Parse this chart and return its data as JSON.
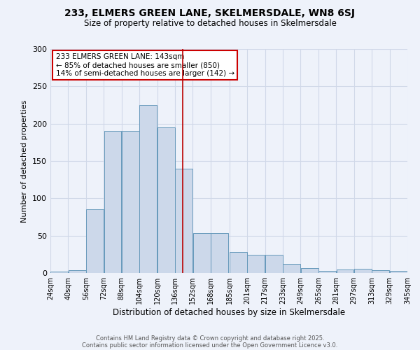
{
  "title": "233, ELMERS GREEN LANE, SKELMERSDALE, WN8 6SJ",
  "subtitle": "Size of property relative to detached houses in Skelmersdale",
  "xlabel": "Distribution of detached houses by size in Skelmersdale",
  "ylabel": "Number of detached properties",
  "bar_left_edges": [
    24,
    40,
    56,
    72,
    88,
    104,
    120,
    136,
    152,
    168,
    185,
    201,
    217,
    233,
    249,
    265,
    281,
    297,
    313,
    329
  ],
  "bar_heights": [
    2,
    4,
    85,
    190,
    190,
    225,
    195,
    140,
    53,
    53,
    28,
    24,
    24,
    12,
    7,
    3,
    5,
    6,
    4,
    3
  ],
  "bin_width": 16,
  "tick_labels": [
    "24sqm",
    "40sqm",
    "56sqm",
    "72sqm",
    "88sqm",
    "104sqm",
    "120sqm",
    "136sqm",
    "152sqm",
    "168sqm",
    "185sqm",
    "201sqm",
    "217sqm",
    "233sqm",
    "249sqm",
    "265sqm",
    "281sqm",
    "297sqm",
    "313sqm",
    "329sqm",
    "345sqm"
  ],
  "vline_x": 143,
  "ylim": [
    0,
    300
  ],
  "yticks": [
    0,
    50,
    100,
    150,
    200,
    250,
    300
  ],
  "bar_facecolor": "#ccd8ea",
  "bar_edgecolor": "#6699bb",
  "vline_color": "#bb0000",
  "grid_color": "#d0d8e8",
  "background_color": "#eef2fa",
  "annotation_title": "233 ELMERS GREEN LANE: 143sqm",
  "annotation_line1": "← 85% of detached houses are smaller (850)",
  "annotation_line2": "14% of semi-detached houses are larger (142) →",
  "annotation_box_color": "#cc0000",
  "footer1": "Contains HM Land Registry data © Crown copyright and database right 2025.",
  "footer2": "Contains public sector information licensed under the Open Government Licence v3.0."
}
